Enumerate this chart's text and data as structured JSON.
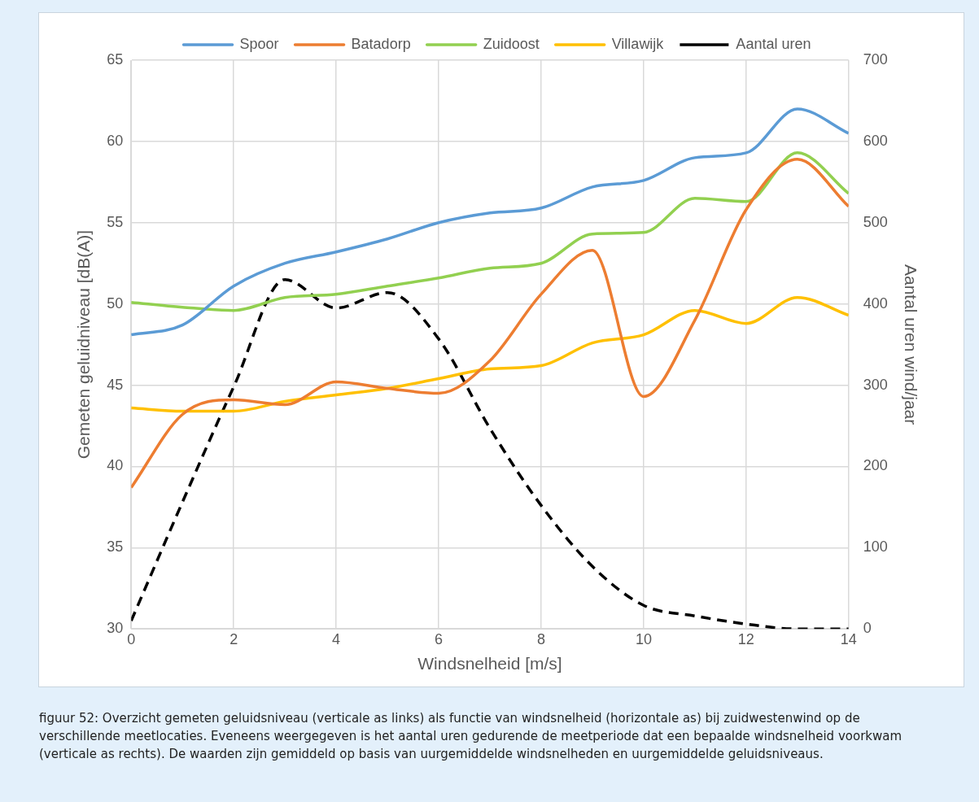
{
  "chart_data": {
    "type": "line",
    "xlabel": "Windsnelheid [m/s]",
    "ylabel": "Gemeten geluidniveau [dB(A)]",
    "y2label": "Aantal uren wind/jaar",
    "x": [
      0,
      1,
      2,
      3,
      4,
      5,
      6,
      7,
      8,
      9,
      10,
      11,
      12,
      13,
      14
    ],
    "xlim": [
      0,
      14
    ],
    "xticks": [
      0,
      2,
      4,
      6,
      8,
      10,
      12,
      14
    ],
    "ylim": [
      30,
      65
    ],
    "yticks": [
      30,
      35,
      40,
      45,
      50,
      55,
      60,
      65
    ],
    "y2lim": [
      0,
      700
    ],
    "y2ticks": [
      0,
      100,
      200,
      300,
      400,
      500,
      600,
      700
    ],
    "grid": true,
    "legend": "top",
    "marker": "none",
    "line_style": "solid",
    "series": [
      {
        "name": "Spoor",
        "color": "#5b9bd5",
        "values": [
          48.1,
          48.7,
          51.1,
          52.5,
          53.2,
          54.0,
          55.0,
          55.6,
          55.9,
          57.2,
          57.6,
          59.0,
          59.3,
          62.0,
          60.5
        ]
      },
      {
        "name": "Batadorp",
        "color": "#ed7d31",
        "values": [
          38.7,
          43.2,
          44.1,
          43.8,
          45.2,
          44.8,
          44.5,
          46.5,
          50.6,
          53.3,
          44.3,
          49.0,
          55.8,
          58.9,
          56.0
        ]
      },
      {
        "name": "Zuidoost",
        "color": "#92d050",
        "values": [
          50.1,
          49.8,
          49.6,
          50.4,
          50.6,
          51.1,
          51.6,
          52.2,
          52.5,
          54.3,
          54.4,
          56.5,
          56.3,
          59.3,
          56.8
        ]
      },
      {
        "name": "Villawijk",
        "color": "#ffc000",
        "values": [
          43.6,
          43.4,
          43.4,
          44.0,
          44.4,
          44.8,
          45.4,
          46.0,
          46.2,
          47.6,
          48.1,
          49.6,
          48.8,
          50.4,
          49.3
        ]
      },
      {
        "name": "Aantal uren",
        "color": "#000000",
        "axis": "y2",
        "line_style": "dashed",
        "values": [
          10,
          156,
          298,
          430,
          395,
          414,
          357,
          247,
          152,
          77,
          29,
          16,
          6,
          0,
          0
        ]
      }
    ],
    "annotations": [
      "figuur 52: Overzicht gemeten geluidsniveau (verticale as links) als functie van windsnelheid (horizontale as) bij zuidwestenwind op de verschillende meetlocaties. Eveneens weergegeven is het aantal uren gedurende de meetperiode dat een bepaalde windsnelheid voorkwam (verticale as rechts). De waarden zijn gemiddeld op basis van uurgemiddelde windsnelheden en uurgemiddelde geluidsniveaus."
    ]
  }
}
